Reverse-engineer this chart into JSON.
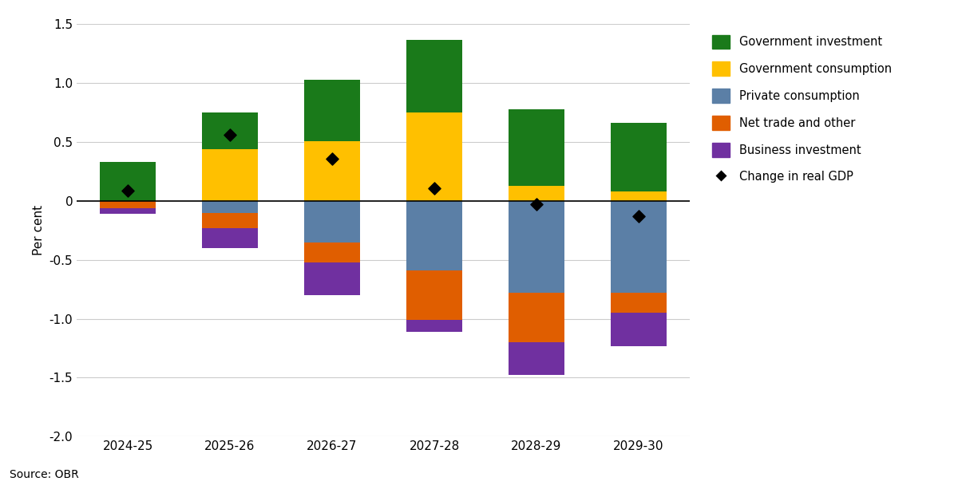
{
  "categories": [
    "2024-25",
    "2025-26",
    "2026-27",
    "2027-28",
    "2028-29",
    "2029-30"
  ],
  "gov_investment": [
    0.33,
    0.31,
    0.52,
    0.62,
    0.65,
    0.58
  ],
  "gov_consumption": [
    0.0,
    0.44,
    0.51,
    0.75,
    0.13,
    0.08
  ],
  "private_consumption": [
    0.0,
    -0.1,
    -0.35,
    -0.59,
    -0.78,
    -0.78
  ],
  "net_trade": [
    -0.06,
    -0.13,
    -0.17,
    -0.42,
    -0.42,
    -0.17
  ],
  "bus_investment": [
    -0.05,
    -0.17,
    -0.28,
    -0.1,
    -0.28,
    -0.28
  ],
  "gdp_change": [
    0.09,
    0.56,
    0.36,
    0.11,
    -0.03,
    -0.13
  ],
  "colors": {
    "Government investment": "#1a7a1a",
    "Government consumption": "#ffc000",
    "Private consumption": "#5b7fa6",
    "Net trade and other": "#e05e00",
    "Business investment": "#7030a0"
  },
  "ylabel": "Per cent",
  "ylim": [
    -2.0,
    1.5
  ],
  "yticks": [
    -2.0,
    -1.5,
    -1.0,
    -0.5,
    0.0,
    0.5,
    1.0,
    1.5
  ],
  "source": "Source: OBR"
}
